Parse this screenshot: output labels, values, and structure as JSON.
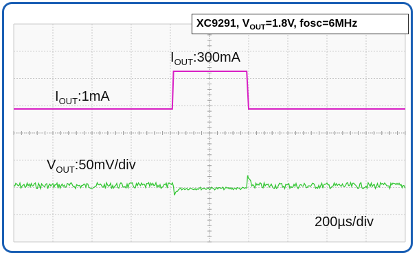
{
  "chart_data": {
    "type": "line",
    "title": "XC9291, V_OUT=1.8V, fosc=6MHz",
    "title_parts": {
      "pre": "XC9291, V",
      "sub": "OUT",
      "post": "=1.8V, fosc=6MHz"
    },
    "grid": true,
    "x_divisions": 10,
    "y_divisions": 8,
    "time_per_div": "200µs/div",
    "series": [
      {
        "name": "I_OUT",
        "color": "#d81fc4",
        "points": [
          [
            0,
            0.5
          ],
          [
            4.05,
            0.5
          ],
          [
            4.08,
            300
          ],
          [
            5.95,
            300
          ],
          [
            6.0,
            0.5
          ],
          [
            10,
            0.5
          ]
        ],
        "annotations": [
          {
            "prefix": "I",
            "sub": "OUT",
            "text": ":1mA"
          },
          {
            "prefix": "I",
            "sub": "OUT",
            "text": ":300mA"
          }
        ]
      },
      {
        "name": "V_OUT",
        "color": "#35c635",
        "scale": "50mV/div",
        "annotations": [
          {
            "prefix": "V",
            "sub": "OUT",
            "text": ":50mV/div"
          }
        ]
      }
    ]
  }
}
